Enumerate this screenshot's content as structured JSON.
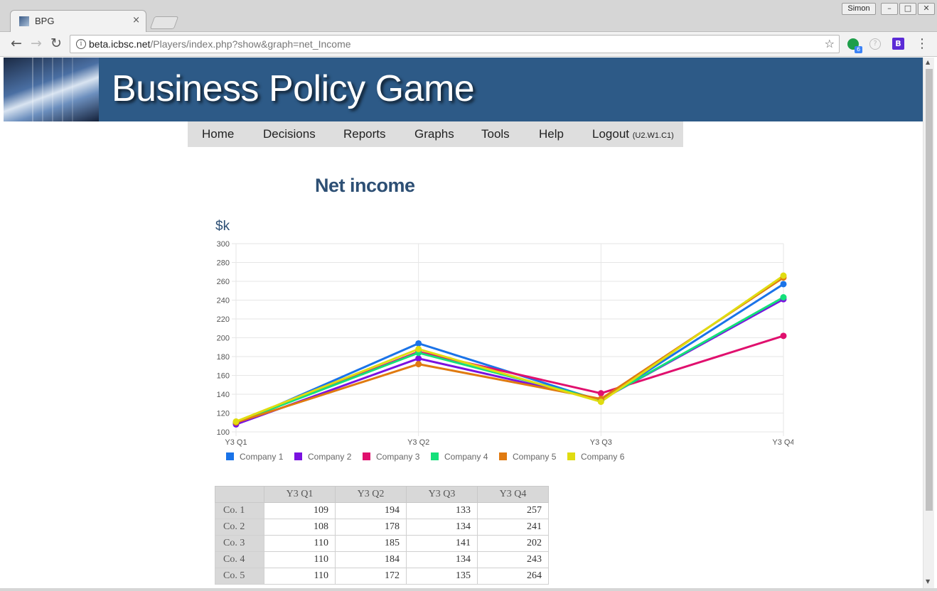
{
  "browser": {
    "tab_title": "BPG",
    "tab_close": "×",
    "profile_name": "Simon",
    "url_domain": "beta.icbsc.net",
    "url_path": "/Players/index.php?show&graph=net_Income",
    "extension_badge": "6",
    "extension_b_label": "B"
  },
  "site": {
    "title": "Business Policy Game"
  },
  "menu": {
    "items": [
      "Home",
      "Decisions",
      "Reports",
      "Graphs",
      "Tools",
      "Help"
    ],
    "logout_label": "Logout",
    "logout_detail": "(U2.W1.C1)"
  },
  "page": {
    "heading": "Net income",
    "unit": "$k"
  },
  "chart_data": {
    "type": "line",
    "title": "Net income",
    "ylabel": "$k",
    "xlabel": "",
    "categories": [
      "Y3 Q1",
      "Y3 Q2",
      "Y3 Q3",
      "Y3 Q4"
    ],
    "ylim": [
      100,
      300
    ],
    "yticks": [
      100,
      120,
      140,
      160,
      180,
      200,
      220,
      240,
      260,
      280,
      300
    ],
    "grid": true,
    "legend": "bottom",
    "series": [
      {
        "name": "Company 1",
        "color": "#1a73e8",
        "values": [
          109,
          194,
          133,
          257
        ]
      },
      {
        "name": "Company 2",
        "color": "#7a11e0",
        "values": [
          108,
          178,
          134,
          241
        ]
      },
      {
        "name": "Company 3",
        "color": "#e0106e",
        "values": [
          110,
          185,
          141,
          202
        ]
      },
      {
        "name": "Company 4",
        "color": "#14e07a",
        "values": [
          110,
          184,
          134,
          243
        ]
      },
      {
        "name": "Company 5",
        "color": "#e07a10",
        "values": [
          110,
          172,
          135,
          264
        ]
      },
      {
        "name": "Company 6",
        "color": "#e0dc10",
        "values": [
          111,
          188,
          132,
          266
        ]
      }
    ]
  },
  "table": {
    "columns": [
      "",
      "Y3 Q1",
      "Y3 Q2",
      "Y3 Q3",
      "Y3 Q4"
    ],
    "rows": [
      {
        "label": "Co. 1",
        "values": [
          "109",
          "194",
          "133",
          "257"
        ]
      },
      {
        "label": "Co. 2",
        "values": [
          "108",
          "178",
          "134",
          "241"
        ]
      },
      {
        "label": "Co. 3",
        "values": [
          "110",
          "185",
          "141",
          "202"
        ]
      },
      {
        "label": "Co. 4",
        "values": [
          "110",
          "184",
          "134",
          "243"
        ]
      },
      {
        "label": "Co. 5",
        "values": [
          "110",
          "172",
          "135",
          "264"
        ]
      }
    ]
  }
}
